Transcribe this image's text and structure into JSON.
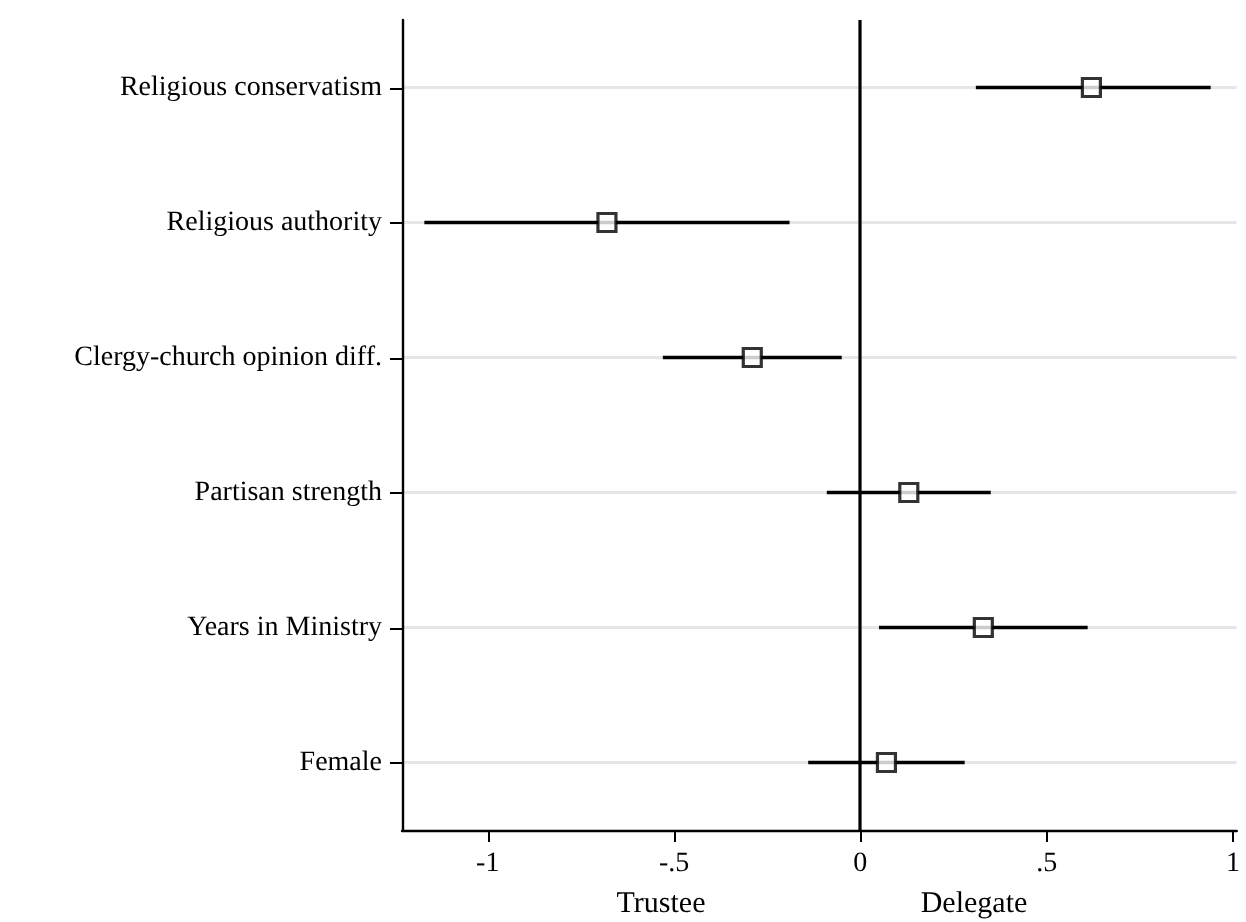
{
  "chart_data": {
    "type": "scatter",
    "orientation": "horizontal",
    "categories": [
      "Religious conservatism",
      "Religious authority",
      "Clergy-church opinion diff.",
      "Partisan strength",
      "Years in Ministry",
      "Female"
    ],
    "series": [
      {
        "color": "#000000",
        "values": [
          0.62,
          -0.68,
          -0.29,
          0.13,
          0.33,
          0.07
        ],
        "errors": [
          [
            0.31,
            0.94
          ],
          [
            -1.17,
            -0.19
          ],
          [
            -0.53,
            -0.05
          ],
          [
            -0.09,
            0.35
          ],
          [
            0.05,
            0.61
          ],
          [
            -0.14,
            0.28
          ]
        ]
      }
    ],
    "marker": "square",
    "xlim": [
      -1.23,
      1.01
    ],
    "xticks": [
      -1,
      {
        "value": -0.5,
        "label": "-.5"
      },
      0,
      {
        "value": 0.5,
        "label": ".5"
      },
      1
    ],
    "ref_lines": [
      {
        "axis": "x",
        "value": 0,
        "color": "#000000",
        "line_style": "solid"
      }
    ],
    "annotations": [
      "Trustee",
      "Delegate"
    ],
    "grid": "y"
  }
}
